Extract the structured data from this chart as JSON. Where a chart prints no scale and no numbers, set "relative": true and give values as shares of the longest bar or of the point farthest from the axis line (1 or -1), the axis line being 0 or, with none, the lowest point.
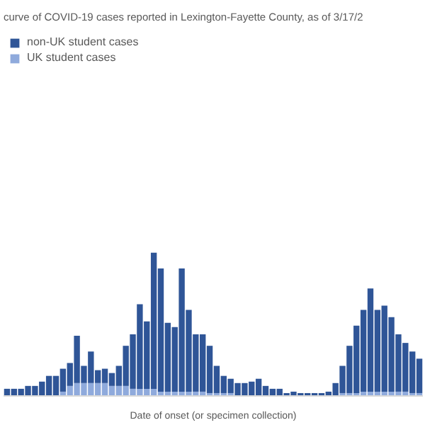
{
  "chart_data": {
    "type": "bar",
    "stacked": true,
    "relative": true,
    "title": "curve of COVID-19 cases reported in Lexington-Fayette County, as of 3/17/2",
    "xlabel": "Date of onset (or specimen collection)",
    "legend": "top left",
    "grid": false,
    "categories": [
      null,
      null,
      null,
      null,
      null,
      null,
      null,
      null,
      null,
      null,
      null,
      null,
      null,
      null,
      null,
      null,
      null,
      null,
      null,
      null,
      null,
      null,
      null,
      null,
      null,
      null,
      null,
      null,
      null,
      null,
      null,
      null,
      null,
      null,
      null,
      null,
      null,
      null,
      null,
      null,
      null,
      null,
      null,
      null,
      null,
      null,
      null,
      null,
      null,
      null,
      null,
      null,
      null,
      null,
      null,
      null,
      null,
      null,
      null,
      null
    ],
    "series": [
      {
        "name": "UK student cases",
        "color": "#8faadc",
        "values": [
          0,
          0,
          0,
          0,
          0,
          0,
          0,
          0,
          0.03,
          0.07,
          0.09,
          0.09,
          0.09,
          0.09,
          0.09,
          0.07,
          0.07,
          0.07,
          0.05,
          0.05,
          0.05,
          0.05,
          0.03,
          0.03,
          0.03,
          0.03,
          0.03,
          0.03,
          0.03,
          0.02,
          0.02,
          0.02,
          0.02,
          0,
          0,
          0,
          0,
          0,
          0,
          0,
          0,
          0,
          0,
          0,
          0,
          0,
          0,
          0,
          0.02,
          0.02,
          0.02,
          0.03,
          0.03,
          0.03,
          0.03,
          0.03,
          0.03,
          0.03,
          0.02,
          0.02
        ]
      },
      {
        "name": "non-UK student cases",
        "color": "#2f5597",
        "values": [
          0.05,
          0.05,
          0.05,
          0.07,
          0.07,
          0.1,
          0.14,
          0.14,
          0.16,
          0.16,
          0.33,
          0.12,
          0.22,
          0.09,
          0.1,
          0.09,
          0.14,
          0.28,
          0.38,
          0.59,
          0.47,
          0.95,
          0.86,
          0.48,
          0.45,
          0.86,
          0.57,
          0.4,
          0.4,
          0.33,
          0.19,
          0.12,
          0.1,
          0.09,
          0.09,
          0.1,
          0.12,
          0.07,
          0.05,
          0.05,
          0.02,
          0.03,
          0.02,
          0.02,
          0.02,
          0.02,
          0.03,
          0.09,
          0.19,
          0.33,
          0.47,
          0.57,
          0.72,
          0.57,
          0.6,
          0.52,
          0.4,
          0.34,
          0.29,
          0.24
        ]
      }
    ]
  }
}
